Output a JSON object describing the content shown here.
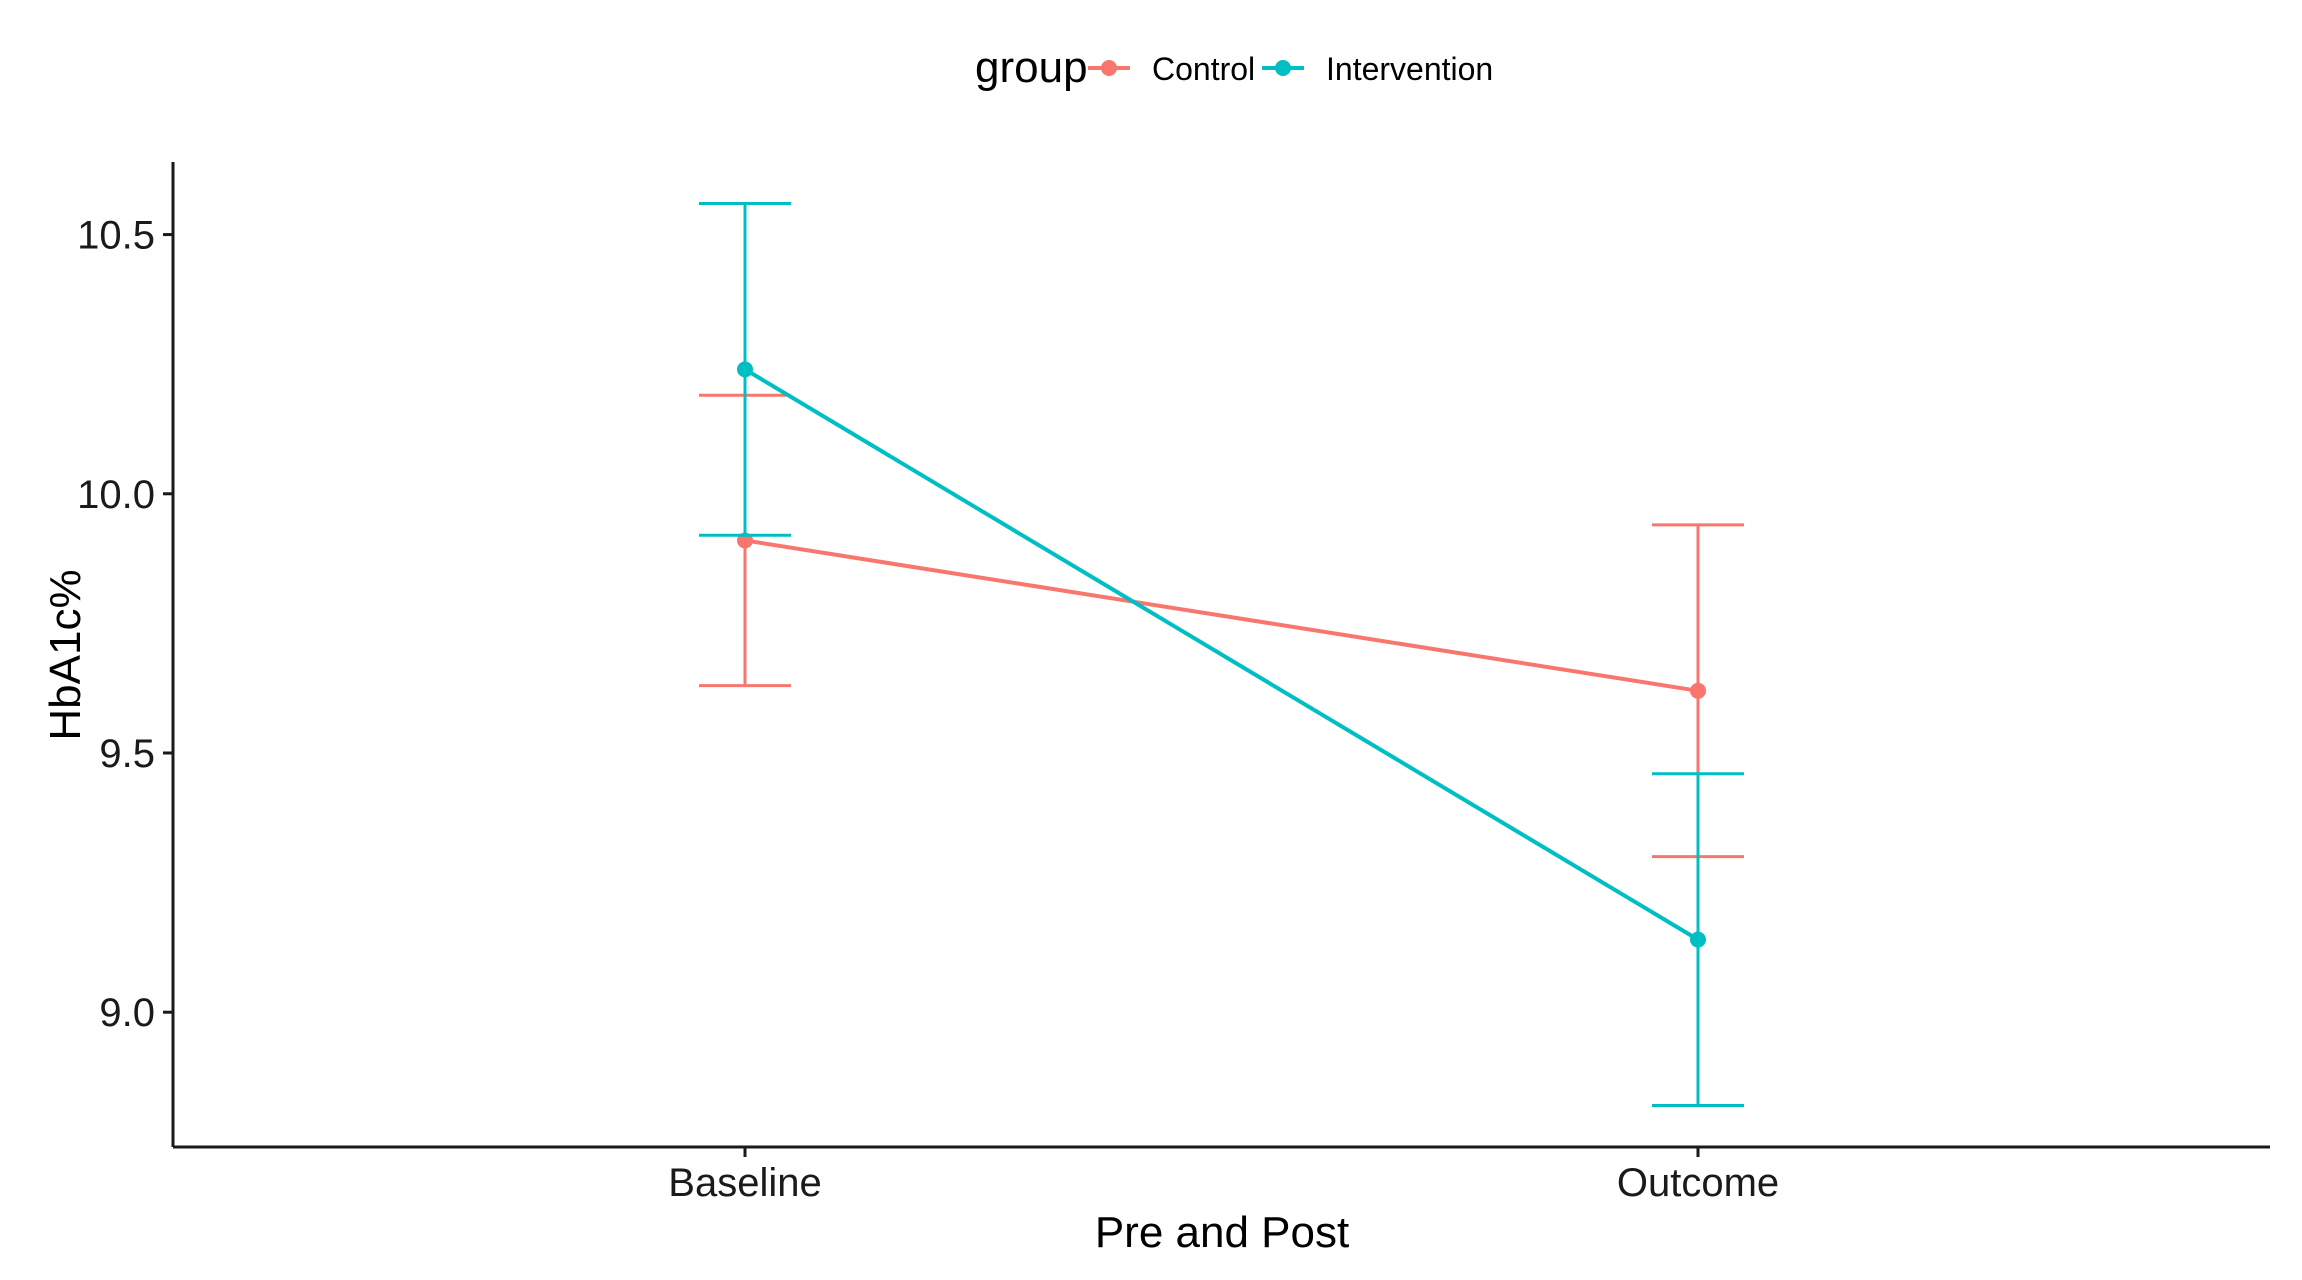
{
  "chart_data": {
    "type": "line",
    "title": "",
    "xlabel": "Pre and Post",
    "ylabel": "HbA1c%",
    "categories": [
      "Baseline",
      "Outcome"
    ],
    "ylim": [
      8.74,
      10.64
    ],
    "yticks": [
      9.0,
      9.5,
      10.0,
      10.5
    ],
    "ytick_labels": [
      "9.0",
      "9.5",
      "10.0",
      "10.5"
    ],
    "legend": {
      "title": "group",
      "position": "top"
    },
    "error_bars": true,
    "series": [
      {
        "name": "Control",
        "color": "#F8766D",
        "values": [
          9.91,
          9.62
        ],
        "lower": [
          9.63,
          9.3
        ],
        "upper": [
          10.19,
          9.94
        ]
      },
      {
        "name": "Intervention",
        "color": "#00BFC4",
        "values": [
          10.24,
          9.14
        ],
        "lower": [
          9.92,
          8.82
        ],
        "upper": [
          10.56,
          9.46
        ]
      }
    ]
  }
}
